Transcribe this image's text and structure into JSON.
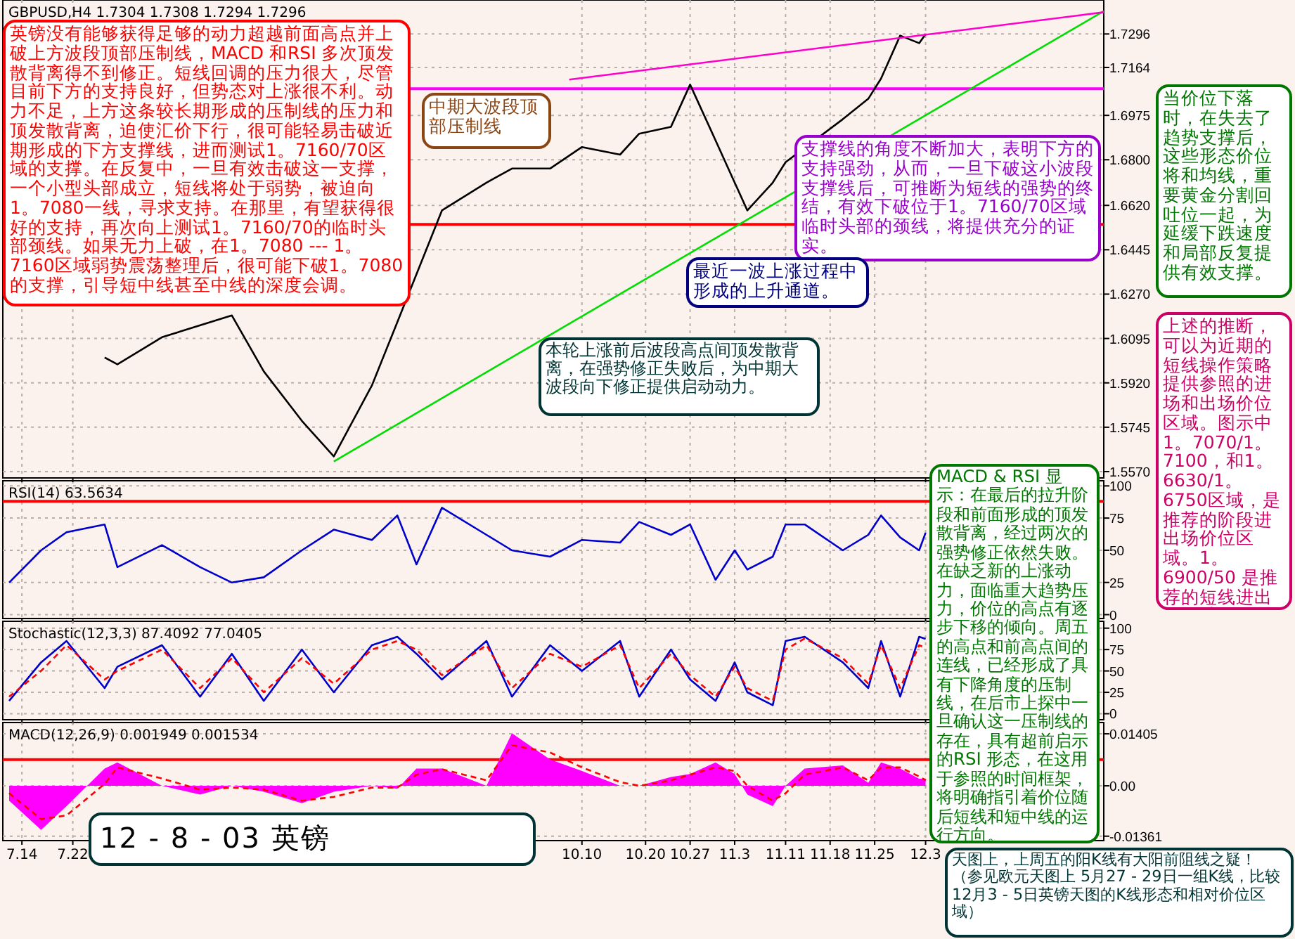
{
  "chart_data": [
    {
      "type": "line",
      "title": "GBPUSD,H4  1.7304 1.7308 1.7294 1.7296",
      "tick_labels": "y",
      "grid": true,
      "x": [
        "--07-27",
        "--07-29",
        "--08-05",
        "--08-16",
        "--08-21",
        "--08-27",
        "--09-01",
        "--09-07",
        "--09-11",
        "--09-18",
        "--09-25",
        "--09-29",
        "--10-05",
        "--10-10",
        "--10-16",
        "--10-19",
        "--10-24",
        "--10-27",
        "--10-31",
        "--11-03",
        "--11-05",
        "--11-09",
        "--11-11",
        "--11-20",
        "--11-24",
        "--11-26",
        "--11-29",
        "--12-02",
        "--12-03"
      ],
      "xlim": [
        "--07-11",
        "--12-31"
      ],
      "ylim": [
        1.5545,
        1.743
      ],
      "xticks": [
        {
          "value": "--07-14",
          "label": null
        },
        {
          "value": "--07-22",
          "label": null
        },
        {
          "value": "--10-10",
          "label": null
        },
        {
          "value": "--10-20",
          "label": null
        },
        {
          "value": "--10-27",
          "label": null
        },
        {
          "value": "--11-03",
          "label": null
        },
        {
          "value": "--11-11",
          "label": null
        },
        {
          "value": "--11-18",
          "label": null
        },
        {
          "value": "--11-25",
          "label": null
        },
        {
          "value": "--12-03",
          "label": null
        }
      ],
      "yticks": [
        1.7296,
        1.7164,
        1.6975,
        {
          "value": 1.68,
          "label": "1.6800"
        },
        {
          "value": 1.662,
          "label": "1.6620"
        },
        1.6445,
        {
          "value": 1.627,
          "label": "1.6270"
        },
        1.6095,
        {
          "value": 1.592,
          "label": "1.5920"
        },
        1.5745,
        {
          "value": 1.557,
          "label": "1.5570"
        }
      ],
      "series": [
        {
          "color": "#000000",
          "values": [
            1.602,
            1.5993,
            1.61,
            1.6186,
            1.5965,
            1.577,
            1.563,
            1.591,
            1.616,
            1.66,
            1.671,
            1.6765,
            1.6765,
            1.685,
            1.682,
            1.6903,
            1.693,
            1.7096,
            1.6876,
            1.671,
            1.66,
            1.671,
            1.679,
            1.696,
            1.704,
            1.712,
            1.729,
            1.726,
            1.7296
          ]
        },
        {
          "type": "line",
          "color": "#00dd00",
          "x": [
            "--09-01",
            "--12-31"
          ],
          "values": [
            1.561,
            1.7386
          ]
        },
        {
          "type": "line",
          "color": "#ff00cc",
          "x": [
            "--10-08",
            "--12-31"
          ],
          "values": [
            1.7116,
            1.7382
          ]
        }
      ],
      "ref_lines": [
        {
          "axis": "y",
          "value": 1.708,
          "color": "#ff00ff"
        },
        {
          "axis": "y",
          "value": 1.6545,
          "color": "#ff0000"
        }
      ],
      "annotations": [
        "英镑没有能够获得足够的动力超越前面高点并上破上方波段顶部压制线，MACD 和RSI 多次顶发散背离得不到修正。短线回调的压力很大，尽管目前下方的支持良好，但势态对上涨很不利。动力不足，上方这条较长期形成的压制线的压力和顶发散背离，迫使汇价下行，很可能轻易击破近期形成的下方支撑线，进而测试1。7160/70区域的支撑。在反复中，一旦有效击破这一支撑，一个小型头部成立，短线将处于弱势，被迫向1。7080一线，寻求支持。在那里，有望获得很好的支持，再次向上测试1。7160/70的临时头部颈线。如果无力上破，在1。7080 --- 1。7160区域弱势震荡整理后，很可能下破1。7080 的支撑，引导短中线甚至中线的深度会调。",
        "中期大波段顶部压制线",
        "支撑线的角度不断加大，表明下方的支持强劲，从而，一旦下破这小波段支撑线后，可推断为短线的强势的终结，有效下破位于1。7160/70区域临时头部的颈线，将提供充分的证实。",
        "最近一波上涨过程中形成的上升通道。",
        "当价位下落时，在失去了趋势支撑后，这些形态价位将和均线，重要黄金分割回吐位一起，为延缓下跌速度和局部反复提供有效支撑。",
        "上述的推断，可以为近期的短线操作策略提供参照的进场和出场价位区域。图示中1。7070/1。7100，和1。6630/1。6750区域，是推荐的阶段进出场价位区域。1。6900/50 是推荐的短线进出场区域。",
        "本轮上涨前后波段高点间顶发散背离，在强势修正失败后，为中期大波段向下修正提供启动动力。",
        "MACD & RSI 显示：在最后的拉升阶段和前面形成的顶发散背离，经过两次的强势修正依然失败。在缺乏新的上涨动力，面临重大趋势压力，价位的高点有逐步下移的倾向。周五的高点和前高点间的连线，已经形成了具有下降角度的压制线，在后市上探中一旦确认这一压制线的存在，具有超前启示的RSI 形态，在这用于参照的时间框架，将明确指引着价位随后短线和短中线的运行方向。",
        "天图上，上周五的阳K线有大阳前阻线之疑！（参见欧元天图上 5月27 - 29日一组K线，比较12月3 - 5日英镑天图的K线形态和相对价位区域）",
        "12 - 8 - 03 英镑"
      ]
    },
    {
      "type": "line",
      "title": "RSI(14)  63.5634",
      "tick_labels": "y",
      "grid": true,
      "x": [
        "--07-12",
        "--07-17",
        "--07-21",
        "--07-27",
        "--07-29",
        "--08-05",
        "--08-11",
        "--08-16",
        "--08-21",
        "--08-27",
        "--09-01",
        "--09-07",
        "--09-11",
        "--09-14",
        "--09-18",
        "--09-25",
        "--09-29",
        "--10-05",
        "--10-10",
        "--10-16",
        "--10-19",
        "--10-24",
        "--10-27",
        "--10-31",
        "--11-03",
        "--11-05",
        "--11-09",
        "--11-11",
        "--11-14",
        "--11-20",
        "--11-24",
        "--11-26",
        "--11-29",
        "--12-02",
        "--12-03"
      ],
      "xlim": [
        "--07-11",
        "--12-31"
      ],
      "ylim": [
        -3,
        104
      ],
      "xticks": [
        {
          "value": "--07-14",
          "label": null
        },
        {
          "value": "--07-22",
          "label": null
        },
        {
          "value": "--10-10",
          "label": null
        },
        {
          "value": "--10-20",
          "label": null
        },
        {
          "value": "--10-27",
          "label": null
        },
        {
          "value": "--11-03",
          "label": null
        },
        {
          "value": "--11-11",
          "label": null
        },
        {
          "value": "--11-18",
          "label": null
        },
        {
          "value": "--11-25",
          "label": null
        },
        {
          "value": "--12-03",
          "label": null
        }
      ],
      "yticks": [
        100,
        75,
        50,
        25,
        0
      ],
      "series": [
        {
          "color": "#0000cc",
          "values": [
            25,
            50,
            64,
            70,
            37,
            54,
            37,
            25,
            29,
            50,
            66,
            58,
            77,
            39,
            83,
            62,
            50,
            45,
            58,
            56,
            72,
            62,
            70,
            27,
            50,
            35,
            45,
            70,
            70,
            50,
            62,
            77,
            60,
            50,
            63.5634
          ]
        }
      ],
      "ref_lines": [
        {
          "axis": "y",
          "value": 88,
          "color": "#ff0000"
        }
      ]
    },
    {
      "type": "line",
      "title": "Stochastic(12,3,3)  87.4092  77.0405",
      "tick_labels": "y",
      "grid": true,
      "x": [
        "--07-12",
        "--07-17",
        "--07-21",
        "--07-27",
        "--07-29",
        "--08-05",
        "--08-11",
        "--08-16",
        "--08-21",
        "--08-27",
        "--09-01",
        "--09-07",
        "--09-11",
        "--09-14",
        "--09-18",
        "--09-25",
        "--09-29",
        "--10-05",
        "--10-10",
        "--10-16",
        "--10-19",
        "--10-24",
        "--10-27",
        "--10-31",
        "--11-03",
        "--11-05",
        "--11-09",
        "--11-11",
        "--11-14",
        "--11-20",
        "--11-24",
        "--11-26",
        "--11-29",
        "--12-02",
        "--12-03"
      ],
      "xlim": [
        "--07-11",
        "--12-31"
      ],
      "ylim": [
        -7,
        108
      ],
      "xticks": [
        {
          "value": "--07-14",
          "label": null
        },
        {
          "value": "--07-22",
          "label": null
        },
        {
          "value": "--10-10",
          "label": null
        },
        {
          "value": "--10-20",
          "label": null
        },
        {
          "value": "--10-27",
          "label": null
        },
        {
          "value": "--11-03",
          "label": null
        },
        {
          "value": "--11-11",
          "label": null
        },
        {
          "value": "--11-18",
          "label": null
        },
        {
          "value": "--11-25",
          "label": null
        },
        {
          "value": "--12-03",
          "label": null
        }
      ],
      "yticks": [
        100,
        75,
        50,
        25,
        0
      ],
      "series": [
        {
          "color": "#0000cc",
          "values": [
            15,
            60,
            85,
            30,
            55,
            80,
            20,
            70,
            15,
            75,
            25,
            80,
            90,
            70,
            40,
            85,
            20,
            80,
            50,
            85,
            20,
            75,
            40,
            15,
            60,
            25,
            10,
            85,
            90,
            60,
            30,
            85,
            20,
            90,
            87.4092
          ]
        },
        {
          "color": "#ff0000",
          "line_style": "dashed",
          "values": [
            20,
            50,
            80,
            40,
            50,
            75,
            30,
            65,
            25,
            65,
            35,
            75,
            85,
            75,
            45,
            80,
            30,
            70,
            55,
            80,
            30,
            70,
            45,
            20,
            55,
            30,
            15,
            75,
            88,
            65,
            35,
            80,
            30,
            80,
            77.0405
          ]
        }
      ]
    },
    {
      "type": "line",
      "title": "MACD(12,26,9)  0.001949  0.001534",
      "grid": true,
      "x": [
        "--07-12",
        "--07-17",
        "--07-21",
        "--07-27",
        "--07-29",
        "--08-05",
        "--08-11",
        "--08-16",
        "--08-21",
        "--08-27",
        "--09-01",
        "--09-07",
        "--09-11",
        "--09-14",
        "--09-18",
        "--09-25",
        "--09-29",
        "--10-05",
        "--10-10",
        "--10-16",
        "--10-19",
        "--10-24",
        "--10-27",
        "--10-31",
        "--11-03",
        "--11-05",
        "--11-09",
        "--11-11",
        "--11-14",
        "--11-20",
        "--11-24",
        "--11-26",
        "--11-29",
        "--12-02",
        "--12-03"
      ],
      "xlim": [
        "--07-11",
        "--12-31"
      ],
      "ylim": [
        -0.0148,
        0.0171
      ],
      "xticks": [
        {
          "value": "--07-14",
          "label": "7.14"
        },
        {
          "value": "--07-22",
          "label": "7.22"
        },
        {
          "value": "--10-10",
          "label": "10.10"
        },
        {
          "value": "--10-20",
          "label": "10.20"
        },
        {
          "value": "--10-27",
          "label": "10.27"
        },
        {
          "value": "--11-03",
          "label": "11.3"
        },
        {
          "value": "--11-11",
          "label": "11.11"
        },
        {
          "value": "--11-18",
          "label": "11.18"
        },
        {
          "value": "--11-25",
          "label": "11.25"
        },
        {
          "value": "--12-03",
          "label": "12.3"
        }
      ],
      "yticks": [
        0.01405,
        {
          "value": 0,
          "label": "0.00"
        },
        -0.01361
      ],
      "series": [
        {
          "type": "area",
          "color": "#ff00ff",
          "values": [
            -0.004,
            -0.0119,
            -0.0055,
            0.0047,
            0.0063,
            0,
            -0.0024,
            0,
            -0.0016,
            -0.0047,
            -0.0016,
            0,
            -0.0008,
            0.0047,
            0.0047,
            0,
            0.0142,
            0.0071,
            0.004,
            0,
            0,
            0.0024,
            0.0032,
            0.0063,
            0.0032,
            -0.0024,
            -0.0055,
            0,
            0.0047,
            0.0055,
            0.0008,
            0.0063,
            0.0047,
            0.0019,
            0.001949
          ]
        },
        {
          "color": "#ff0000",
          "line_style": "dashed",
          "values": [
            -0.002,
            -0.009,
            -0.008,
            0.0005,
            0.005,
            0.002,
            -0.001,
            -0.0005,
            -0.001,
            -0.004,
            -0.003,
            -0.0005,
            -0.0005,
            0.003,
            0.0045,
            0.0015,
            0.011,
            0.009,
            0.005,
            0.001,
            0,
            0.0015,
            0.003,
            0.005,
            0.004,
            0,
            -0.004,
            -0.002,
            0.003,
            0.005,
            0.0015,
            0.005,
            0.005,
            0.0025,
            0.001534
          ]
        }
      ],
      "ref_lines": [
        {
          "axis": "y",
          "value": 0.0071,
          "color": "#ff0000"
        }
      ]
    }
  ]
}
